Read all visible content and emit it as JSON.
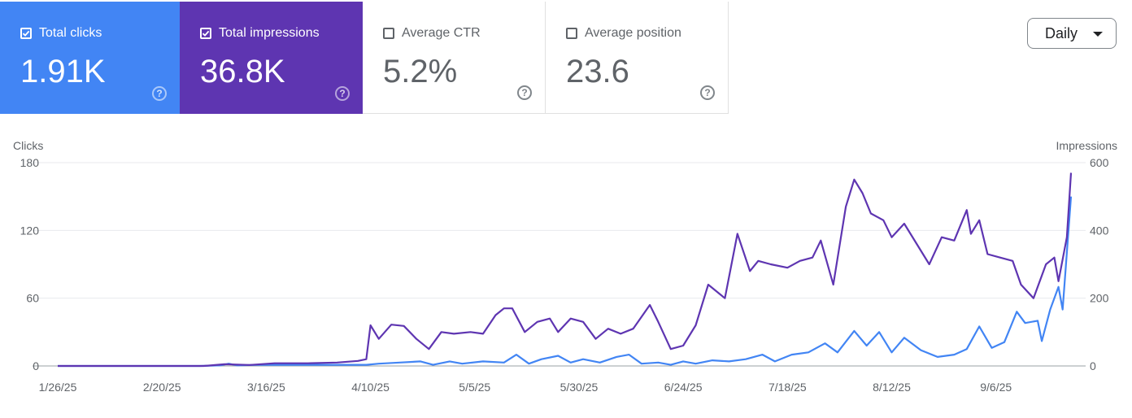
{
  "metrics": [
    {
      "label": "Total clicks",
      "value": "1.91K",
      "checked": true,
      "color": "#4285f4"
    },
    {
      "label": "Total impressions",
      "value": "36.8K",
      "checked": true,
      "color": "#5e35b1"
    },
    {
      "label": "Average CTR",
      "value": "5.2%",
      "checked": false
    },
    {
      "label": "Average position",
      "value": "23.6",
      "checked": false
    }
  ],
  "help_glyph": "?",
  "granularity": {
    "selected": "Daily"
  },
  "chart_data": {
    "type": "line",
    "ylabel_left": "Clicks",
    "ylabel_right": "Impressions",
    "y_left_ticks": [
      0,
      60,
      120,
      180
    ],
    "y_right_ticks": [
      0,
      200,
      400,
      600
    ],
    "ylim_left": [
      0,
      180
    ],
    "ylim_right": [
      0,
      600
    ],
    "x_tick_labels": [
      "1/26/25",
      "2/20/25",
      "3/16/25",
      "4/10/25",
      "5/5/25",
      "5/30/25",
      "6/24/25",
      "7/18/25",
      "8/12/25",
      "9/6/25"
    ],
    "x_dates": [
      "2025-01-26",
      "2025-09-26"
    ],
    "grid": true,
    "series": [
      {
        "name": "Clicks",
        "axis": "left",
        "color": "#4285f4",
        "points": [
          [
            "2025-01-26",
            0
          ],
          [
            "2025-03-01",
            0
          ],
          [
            "2025-03-06",
            0.5
          ],
          [
            "2025-03-08",
            2
          ],
          [
            "2025-03-10",
            0.5
          ],
          [
            "2025-03-15",
            1
          ],
          [
            "2025-03-20",
            1
          ],
          [
            "2025-03-26",
            1
          ],
          [
            "2025-04-03",
            1
          ],
          [
            "2025-04-10",
            1
          ],
          [
            "2025-04-13",
            2
          ],
          [
            "2025-04-18",
            3
          ],
          [
            "2025-04-23",
            4
          ],
          [
            "2025-04-26",
            1
          ],
          [
            "2025-04-30",
            4
          ],
          [
            "2025-05-03",
            2
          ],
          [
            "2025-05-08",
            4
          ],
          [
            "2025-05-13",
            3
          ],
          [
            "2025-05-16",
            10
          ],
          [
            "2025-05-19",
            2
          ],
          [
            "2025-05-22",
            6
          ],
          [
            "2025-05-26",
            9
          ],
          [
            "2025-05-29",
            3
          ],
          [
            "2025-06-01",
            6
          ],
          [
            "2025-06-05",
            3
          ],
          [
            "2025-06-09",
            8
          ],
          [
            "2025-06-12",
            10
          ],
          [
            "2025-06-15",
            2
          ],
          [
            "2025-06-19",
            3
          ],
          [
            "2025-06-22",
            1
          ],
          [
            "2025-06-25",
            4
          ],
          [
            "2025-06-28",
            2
          ],
          [
            "2025-07-02",
            5
          ],
          [
            "2025-07-06",
            4
          ],
          [
            "2025-07-10",
            6
          ],
          [
            "2025-07-14",
            10
          ],
          [
            "2025-07-17",
            4
          ],
          [
            "2025-07-21",
            10
          ],
          [
            "2025-07-25",
            12
          ],
          [
            "2025-07-29",
            20
          ],
          [
            "2025-08-01",
            12
          ],
          [
            "2025-08-05",
            31
          ],
          [
            "2025-08-08",
            18
          ],
          [
            "2025-08-11",
            30
          ],
          [
            "2025-08-14",
            12
          ],
          [
            "2025-08-17",
            25
          ],
          [
            "2025-08-21",
            14
          ],
          [
            "2025-08-25",
            8
          ],
          [
            "2025-08-29",
            10
          ],
          [
            "2025-09-01",
            15
          ],
          [
            "2025-09-04",
            35
          ],
          [
            "2025-09-07",
            16
          ],
          [
            "2025-09-10",
            21
          ],
          [
            "2025-09-13",
            48
          ],
          [
            "2025-09-15",
            38
          ],
          [
            "2025-09-18",
            40
          ],
          [
            "2025-09-19",
            22
          ],
          [
            "2025-09-21",
            50
          ],
          [
            "2025-09-23",
            70
          ],
          [
            "2025-09-24",
            50
          ],
          [
            "2025-09-26",
            150
          ]
        ]
      },
      {
        "name": "Impressions",
        "axis": "right",
        "color": "#5e35b1",
        "points": [
          [
            "2025-01-26",
            0
          ],
          [
            "2025-03-02",
            0
          ],
          [
            "2025-03-07",
            5
          ],
          [
            "2025-03-13",
            3
          ],
          [
            "2025-03-19",
            8
          ],
          [
            "2025-03-27",
            8
          ],
          [
            "2025-04-03",
            10
          ],
          [
            "2025-04-08",
            15
          ],
          [
            "2025-04-10",
            20
          ],
          [
            "2025-04-11",
            120
          ],
          [
            "2025-04-13",
            80
          ],
          [
            "2025-04-16",
            122
          ],
          [
            "2025-04-19",
            118
          ],
          [
            "2025-04-22",
            80
          ],
          [
            "2025-04-25",
            50
          ],
          [
            "2025-04-28",
            100
          ],
          [
            "2025-05-01",
            95
          ],
          [
            "2025-05-05",
            100
          ],
          [
            "2025-05-08",
            95
          ],
          [
            "2025-05-11",
            150
          ],
          [
            "2025-05-13",
            170
          ],
          [
            "2025-05-15",
            170
          ],
          [
            "2025-05-18",
            100
          ],
          [
            "2025-05-21",
            130
          ],
          [
            "2025-05-24",
            140
          ],
          [
            "2025-05-26",
            100
          ],
          [
            "2025-05-29",
            140
          ],
          [
            "2025-06-01",
            130
          ],
          [
            "2025-06-04",
            80
          ],
          [
            "2025-06-07",
            110
          ],
          [
            "2025-06-10",
            95
          ],
          [
            "2025-06-13",
            110
          ],
          [
            "2025-06-17",
            180
          ],
          [
            "2025-06-19",
            130
          ],
          [
            "2025-06-22",
            50
          ],
          [
            "2025-06-25",
            60
          ],
          [
            "2025-06-28",
            120
          ],
          [
            "2025-07-01",
            240
          ],
          [
            "2025-07-05",
            200
          ],
          [
            "2025-07-08",
            390
          ],
          [
            "2025-07-11",
            280
          ],
          [
            "2025-07-13",
            310
          ],
          [
            "2025-07-16",
            300
          ],
          [
            "2025-07-20",
            290
          ],
          [
            "2025-07-23",
            310
          ],
          [
            "2025-07-26",
            320
          ],
          [
            "2025-07-28",
            370
          ],
          [
            "2025-07-31",
            240
          ],
          [
            "2025-08-03",
            470
          ],
          [
            "2025-08-05",
            550
          ],
          [
            "2025-08-07",
            510
          ],
          [
            "2025-08-09",
            450
          ],
          [
            "2025-08-12",
            430
          ],
          [
            "2025-08-14",
            380
          ],
          [
            "2025-08-17",
            420
          ],
          [
            "2025-08-20",
            360
          ],
          [
            "2025-08-23",
            300
          ],
          [
            "2025-08-26",
            380
          ],
          [
            "2025-08-29",
            370
          ],
          [
            "2025-09-01",
            460
          ],
          [
            "2025-09-02",
            390
          ],
          [
            "2025-09-04",
            430
          ],
          [
            "2025-09-06",
            330
          ],
          [
            "2025-09-09",
            320
          ],
          [
            "2025-09-12",
            310
          ],
          [
            "2025-09-14",
            240
          ],
          [
            "2025-09-17",
            200
          ],
          [
            "2025-09-20",
            300
          ],
          [
            "2025-09-22",
            320
          ],
          [
            "2025-09-23",
            250
          ],
          [
            "2025-09-25",
            380
          ],
          [
            "2025-09-26",
            570
          ]
        ]
      }
    ]
  }
}
